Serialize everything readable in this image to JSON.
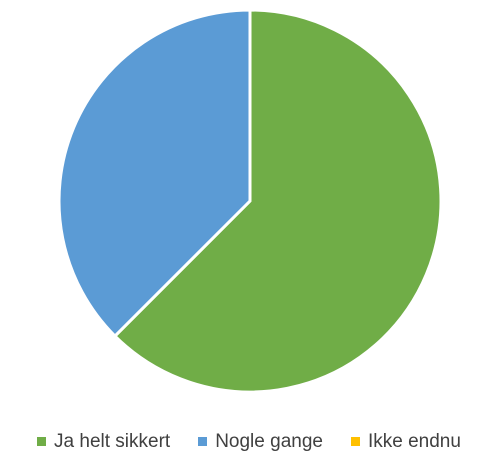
{
  "chart_data": {
    "type": "pie",
    "categories": [
      "Ja helt sikkert",
      "Nogle gange",
      "Ikke endnu"
    ],
    "values": [
      62.5,
      37.5,
      0
    ],
    "colors": [
      "#70AD47",
      "#5B9BD5",
      "#FFC000"
    ],
    "title": "",
    "start_angle_deg": 0,
    "direction": "clockwise",
    "legend_position": "bottom"
  }
}
